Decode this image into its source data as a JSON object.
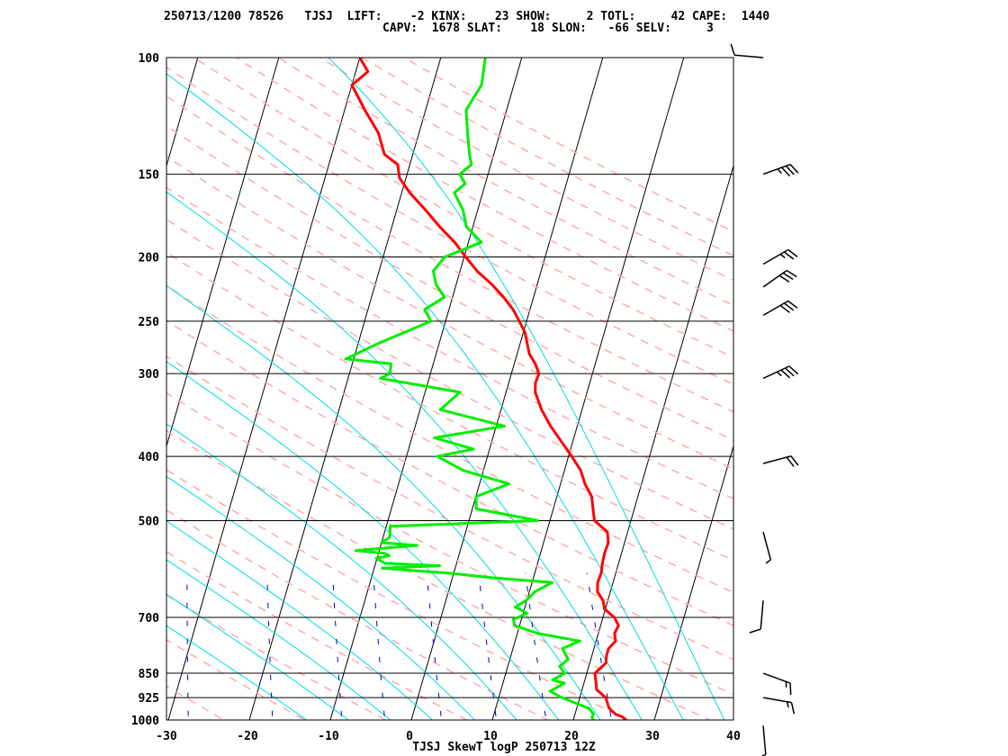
{
  "header": {
    "line1": "250713/1200 78526   TJSJ  LIFT:    -2 KINX:    23 SHOW:     2 TOTL:     42 CAPE:  1440",
    "line2": "CAPV:  1678 SLAT:    18 SLON:   -66 SELV:     3"
  },
  "colors": {
    "temperature": "#ff0000",
    "dewpoint": "#00ee00",
    "dry_adiabat": "#ffaaaa",
    "moist_adiabat": "#00dddd",
    "mixing_ratio": "#0000cc",
    "isotherm": "#000000",
    "isobar": "#000000"
  },
  "chart_data": {
    "type": "line",
    "title": "TJSJ SkewT logP 250713 12Z",
    "xlabel": "",
    "ylabel": "",
    "x_ticks": [
      -30,
      -20,
      -10,
      0,
      10,
      20,
      30,
      40
    ],
    "y_ticks": [
      100,
      150,
      200,
      250,
      300,
      400,
      500,
      700,
      850,
      925,
      1000
    ],
    "xlim": [
      -30,
      40
    ],
    "ylim": [
      1000,
      100
    ],
    "y_scale": "log",
    "series": [
      {
        "role": "temperature",
        "points": [
          [
            1000,
            26.5
          ],
          [
            990,
            26
          ],
          [
            980,
            25
          ],
          [
            960,
            24
          ],
          [
            925,
            23.2
          ],
          [
            900,
            21.8
          ],
          [
            880,
            21.5
          ],
          [
            850,
            21
          ],
          [
            820,
            22
          ],
          [
            800,
            21.8
          ],
          [
            780,
            21.8
          ],
          [
            760,
            22.4
          ],
          [
            740,
            22
          ],
          [
            720,
            22.2
          ],
          [
            700,
            21.4
          ],
          [
            680,
            19.9
          ],
          [
            660,
            19.4
          ],
          [
            640,
            18.4
          ],
          [
            620,
            18.1
          ],
          [
            600,
            18.2
          ],
          [
            580,
            18.0
          ],
          [
            560,
            17.9
          ],
          [
            540,
            18.0
          ],
          [
            520,
            17.5
          ],
          [
            500,
            15.5
          ],
          [
            480,
            14.9
          ],
          [
            460,
            14.3
          ],
          [
            440,
            13.0
          ],
          [
            420,
            12.0
          ],
          [
            400,
            10.4
          ],
          [
            380,
            8.6
          ],
          [
            360,
            6.7
          ],
          [
            340,
            5.0
          ],
          [
            320,
            3.6
          ],
          [
            310,
            3.3
          ],
          [
            300,
            3.4
          ],
          [
            290,
            2.6
          ],
          [
            280,
            1.5
          ],
          [
            260,
            0.2
          ],
          [
            250,
            -0.9
          ],
          [
            240,
            -2.1
          ],
          [
            230,
            -3.7
          ],
          [
            220,
            -5.6
          ],
          [
            210,
            -7.9
          ],
          [
            200,
            -9.8
          ],
          [
            190,
            -11.7
          ],
          [
            180,
            -14.1
          ],
          [
            170,
            -16.4
          ],
          [
            160,
            -19.0
          ],
          [
            152,
            -20.8
          ],
          [
            150,
            -21.0
          ],
          [
            145,
            -21.5
          ],
          [
            140,
            -23.5
          ],
          [
            130,
            -25.0
          ],
          [
            120,
            -27.5
          ],
          [
            110,
            -30.0
          ],
          [
            105,
            -28.5
          ],
          [
            100,
            -30.0
          ]
        ]
      },
      {
        "role": "dewpoint",
        "points": [
          [
            1000,
            22.5
          ],
          [
            990,
            22.2
          ],
          [
            980,
            22.3
          ],
          [
            960,
            21.5
          ],
          [
            945,
            19.9
          ],
          [
            925,
            17.8
          ],
          [
            905,
            16.1
          ],
          [
            880,
            17.6
          ],
          [
            870,
            16.0
          ],
          [
            850,
            17.3
          ],
          [
            830,
            16.4
          ],
          [
            810,
            17.2
          ],
          [
            780,
            16.1
          ],
          [
            760,
            18.0
          ],
          [
            740,
            12.5
          ],
          [
            720,
            9.4
          ],
          [
            705,
            9.0
          ],
          [
            690,
            10.5
          ],
          [
            675,
            8.8
          ],
          [
            660,
            9.9
          ],
          [
            640,
            10.7
          ],
          [
            620,
            12.5
          ],
          [
            610,
            5.0
          ],
          [
            600,
            -0.7
          ],
          [
            595,
            -5.1
          ],
          [
            590,
            -9.0
          ],
          [
            585,
            -2.0
          ],
          [
            580,
            -8.8
          ],
          [
            570,
            -10.1
          ],
          [
            565,
            -8.6
          ],
          [
            560,
            -9.3
          ],
          [
            555,
            -12.9
          ],
          [
            545,
            -5.5
          ],
          [
            540,
            -10.0
          ],
          [
            530,
            -9.2
          ],
          [
            510,
            -9.5
          ],
          [
            500,
            8.5
          ],
          [
            480,
            0.5
          ],
          [
            460,
            0.0
          ],
          [
            440,
            3.6
          ],
          [
            420,
            -2.5
          ],
          [
            400,
            -6.2
          ],
          [
            390,
            -2.0
          ],
          [
            375,
            -7.2
          ],
          [
            360,
            1.0
          ],
          [
            340,
            -7.5
          ],
          [
            320,
            -5.7
          ],
          [
            305,
            -16.0
          ],
          [
            300,
            -15.0
          ],
          [
            290,
            -15.2
          ],
          [
            285,
            -21.0
          ],
          [
            270,
            -17.5
          ],
          [
            250,
            -11.8
          ],
          [
            240,
            -13.0
          ],
          [
            230,
            -11.0
          ],
          [
            220,
            -12.5
          ],
          [
            210,
            -13.3
          ],
          [
            200,
            -12.4
          ],
          [
            190,
            -8.4
          ],
          [
            180,
            -10.8
          ],
          [
            170,
            -11.8
          ],
          [
            160,
            -13.5
          ],
          [
            155,
            -12.5
          ],
          [
            150,
            -13.5
          ],
          [
            145,
            -12.4
          ],
          [
            140,
            -13.0
          ],
          [
            130,
            -14.0
          ],
          [
            120,
            -15.0
          ],
          [
            110,
            -14.0
          ],
          [
            100,
            -14.5
          ]
        ]
      }
    ],
    "wind_barbs": [
      {
        "p": 100,
        "dir": 275,
        "spd": 10
      },
      {
        "p": 150,
        "dir": 70,
        "spd": 35
      },
      {
        "p": 205,
        "dir": 60,
        "spd": 25
      },
      {
        "p": 222,
        "dir": 55,
        "spd": 30
      },
      {
        "p": 245,
        "dir": 60,
        "spd": 30
      },
      {
        "p": 305,
        "dir": 65,
        "spd": 35
      },
      {
        "p": 410,
        "dir": 75,
        "spd": 20
      },
      {
        "p": 520,
        "dir": 165,
        "spd": 5
      },
      {
        "p": 660,
        "dir": 185,
        "spd": 10
      },
      {
        "p": 850,
        "dir": 110,
        "spd": 15
      },
      {
        "p": 925,
        "dir": 100,
        "spd": 15
      },
      {
        "p": 1020,
        "dir": 175,
        "spd": 5
      }
    ]
  }
}
